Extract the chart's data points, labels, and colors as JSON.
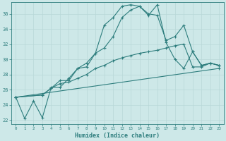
{
  "xlabel": "Humidex (Indice chaleur)",
  "bg_color": "#cde8e8",
  "line_color": "#2d7d7d",
  "grid_color": "#b8d8d8",
  "xlim": [
    -0.5,
    23.5
  ],
  "ylim": [
    21.5,
    37.5
  ],
  "yticks": [
    22,
    24,
    26,
    28,
    30,
    32,
    34,
    36
  ],
  "xticks": [
    0,
    1,
    2,
    3,
    4,
    5,
    6,
    7,
    8,
    9,
    10,
    11,
    12,
    13,
    14,
    15,
    16,
    17,
    18,
    19,
    20,
    21,
    22,
    23
  ],
  "line1_x": [
    0,
    1,
    2,
    3,
    4,
    5,
    6,
    7,
    8,
    9,
    10,
    11,
    12,
    13,
    14,
    15,
    16,
    17,
    18,
    19,
    20,
    21,
    22,
    23
  ],
  "line1_y": [
    25.0,
    22.2,
    24.5,
    22.3,
    26.3,
    26.3,
    27.5,
    28.8,
    29.0,
    30.8,
    34.5,
    35.5,
    37.0,
    37.2,
    37.0,
    35.8,
    37.2,
    32.2,
    30.0,
    28.8,
    31.0,
    29.2,
    29.5,
    29.2
  ],
  "line2_x": [
    0,
    3,
    4,
    5,
    6,
    7,
    8,
    9,
    10,
    11,
    12,
    13,
    14,
    15,
    16,
    17,
    18,
    19,
    20,
    21,
    22,
    23
  ],
  "line2_y": [
    25.0,
    25.3,
    26.2,
    27.2,
    27.2,
    28.8,
    29.5,
    30.8,
    31.5,
    33.0,
    35.5,
    36.5,
    37.0,
    36.0,
    35.8,
    32.5,
    33.0,
    34.5,
    31.0,
    29.2,
    29.5,
    29.2
  ],
  "line3_x": [
    0,
    3,
    4,
    5,
    6,
    7,
    8,
    9,
    10,
    11,
    12,
    13,
    14,
    15,
    16,
    17,
    18,
    19,
    20,
    21,
    22,
    23
  ],
  "line3_y": [
    25.0,
    25.3,
    26.2,
    26.8,
    27.0,
    27.5,
    28.0,
    28.8,
    29.2,
    29.8,
    30.2,
    30.5,
    30.8,
    31.0,
    31.2,
    31.5,
    31.8,
    32.0,
    29.0,
    29.0,
    29.5,
    29.2
  ],
  "line4_x": [
    0,
    23
  ],
  "line4_y": [
    25.0,
    28.8
  ]
}
